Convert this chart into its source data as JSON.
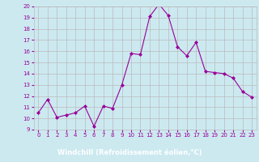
{
  "x": [
    0,
    1,
    2,
    3,
    4,
    5,
    6,
    7,
    8,
    9,
    10,
    11,
    12,
    13,
    14,
    15,
    16,
    17,
    18,
    19,
    20,
    21,
    22,
    23
  ],
  "y": [
    10.5,
    11.7,
    10.1,
    10.3,
    10.5,
    11.1,
    9.3,
    11.1,
    10.9,
    13.0,
    15.8,
    15.7,
    19.1,
    20.2,
    19.2,
    16.4,
    15.6,
    16.8,
    14.2,
    14.1,
    14.0,
    13.6,
    12.4,
    11.9
  ],
  "xlabel": "Windchill (Refroidissement éolien,°C)",
  "ylim": [
    9,
    20
  ],
  "xlim_min": -0.5,
  "xlim_max": 23.5,
  "yticks": [
    9,
    10,
    11,
    12,
    13,
    14,
    15,
    16,
    17,
    18,
    19,
    20
  ],
  "xticks": [
    0,
    1,
    2,
    3,
    4,
    5,
    6,
    7,
    8,
    9,
    10,
    11,
    12,
    13,
    14,
    15,
    16,
    17,
    18,
    19,
    20,
    21,
    22,
    23
  ],
  "line_color": "#990099",
  "marker": "D",
  "marker_size": 2,
  "bg_color": "#cce9f0",
  "grid_color": "#bbbbbb",
  "tick_color": "#990099",
  "xlabel_color": "#ffffff",
  "xlabel_bg": "#7700aa",
  "tick_fontsize": 5,
  "xlabel_fontsize": 6
}
